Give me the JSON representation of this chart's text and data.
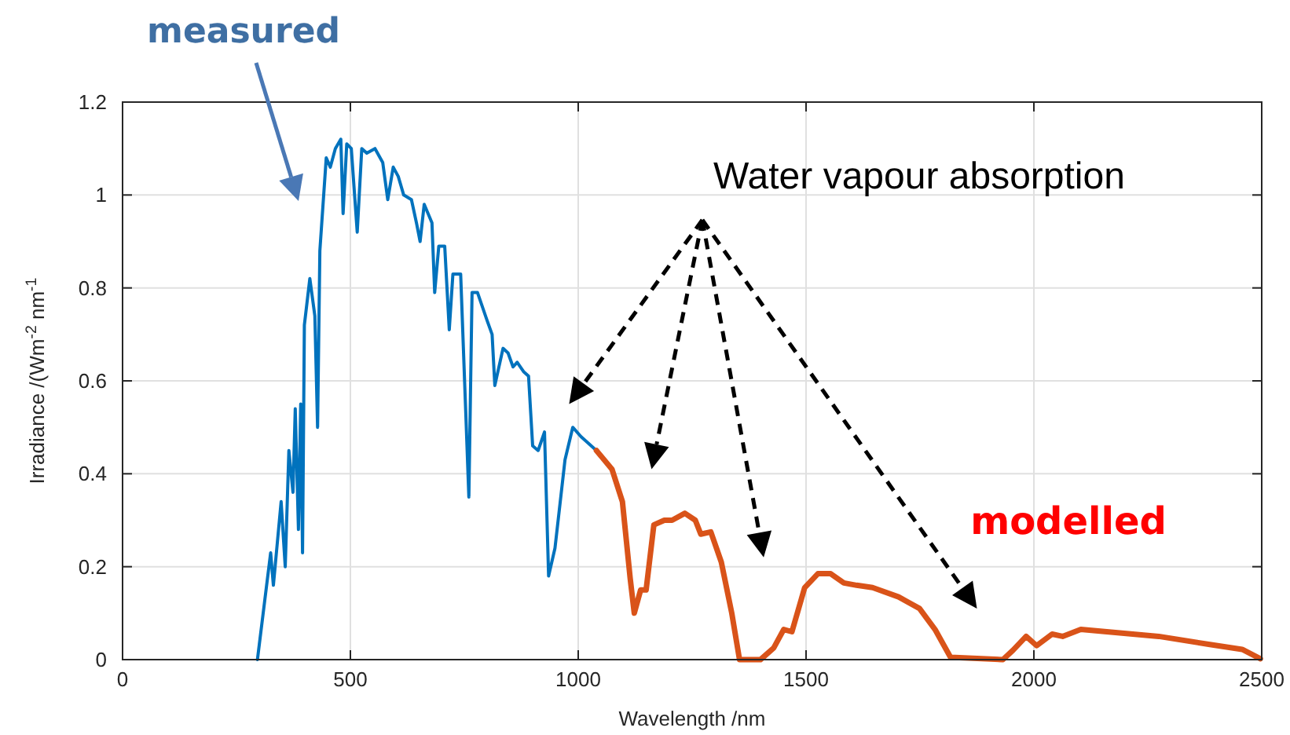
{
  "chart_data": {
    "type": "line",
    "xlabel": "Wavelength /nm",
    "ylabel": "Irradiance /(Wm$^{-2}$ nm$^{-1}$",
    "xlim": [
      0,
      2500
    ],
    "ylim": [
      0,
      1.2
    ],
    "xticks": [
      0,
      500,
      1000,
      1500,
      2000,
      2500
    ],
    "yticks": [
      0,
      0.2,
      0.4,
      0.6,
      0.8,
      1,
      1.2
    ],
    "grid": true,
    "marker": "none",
    "line_style": "solid",
    "annotations": [
      "measured",
      "Water vapour absorption",
      "modelled"
    ],
    "series": [
      {
        "color": "#0072bd",
        "x": [
          296,
          325,
          331,
          348,
          357,
          365,
          374,
          379,
          386,
          391,
          395,
          399,
          411,
          422,
          428,
          433,
          447,
          456,
          467,
          479,
          484,
          492,
          502,
          515,
          525,
          536,
          554,
          571,
          582,
          594,
          605,
          617,
          634,
          645,
          653,
          662,
          679,
          685,
          694,
          707,
          717,
          725,
          742,
          760,
          767,
          779,
          800,
          811,
          817,
          835,
          846,
          857,
          866,
          880,
          891,
          900,
          912,
          926,
          935,
          949,
          971,
          988,
          1006,
          1040
        ],
        "values": [
          0,
          0.23,
          0.16,
          0.34,
          0.2,
          0.45,
          0.36,
          0.54,
          0.28,
          0.55,
          0.23,
          0.72,
          0.82,
          0.74,
          0.5,
          0.88,
          1.08,
          1.06,
          1.1,
          1.12,
          0.96,
          1.11,
          1.1,
          0.92,
          1.1,
          1.09,
          1.1,
          1.07,
          0.99,
          1.06,
          1.04,
          1,
          0.99,
          0.94,
          0.9,
          0.98,
          0.94,
          0.79,
          0.89,
          0.89,
          0.71,
          0.83,
          0.83,
          0.35,
          0.79,
          0.79,
          0.73,
          0.7,
          0.59,
          0.67,
          0.66,
          0.63,
          0.64,
          0.62,
          0.61,
          0.46,
          0.45,
          0.49,
          0.18,
          0.24,
          0.43,
          0.5,
          0.48,
          0.45
        ]
      },
      {
        "color": "#d95319",
        "x": [
          1040,
          1074,
          1097,
          1114,
          1123,
          1137,
          1149,
          1166,
          1189,
          1206,
          1234,
          1257,
          1269,
          1291,
          1314,
          1337,
          1354,
          1400,
          1429,
          1451,
          1469,
          1497,
          1526,
          1554,
          1583,
          1611,
          1646,
          1703,
          1749,
          1783,
          1817,
          1932,
          1954,
          1983,
          2006,
          2040,
          2063,
          2103,
          2160,
          2274,
          2389,
          2457,
          2497
        ],
        "values": [
          0.45,
          0.41,
          0.34,
          0.175,
          0.1,
          0.15,
          0.15,
          0.29,
          0.3,
          0.3,
          0.315,
          0.3,
          0.27,
          0.275,
          0.21,
          0.1,
          0,
          0,
          0.025,
          0.065,
          0.06,
          0.155,
          0.185,
          0.185,
          0.165,
          0.16,
          0.155,
          0.135,
          0.11,
          0.065,
          0.005,
          0,
          0.02,
          0.05,
          0.03,
          0.055,
          0.05,
          0.065,
          0.06,
          0.05,
          0.032,
          0.022,
          0.002
        ]
      }
    ]
  }
}
